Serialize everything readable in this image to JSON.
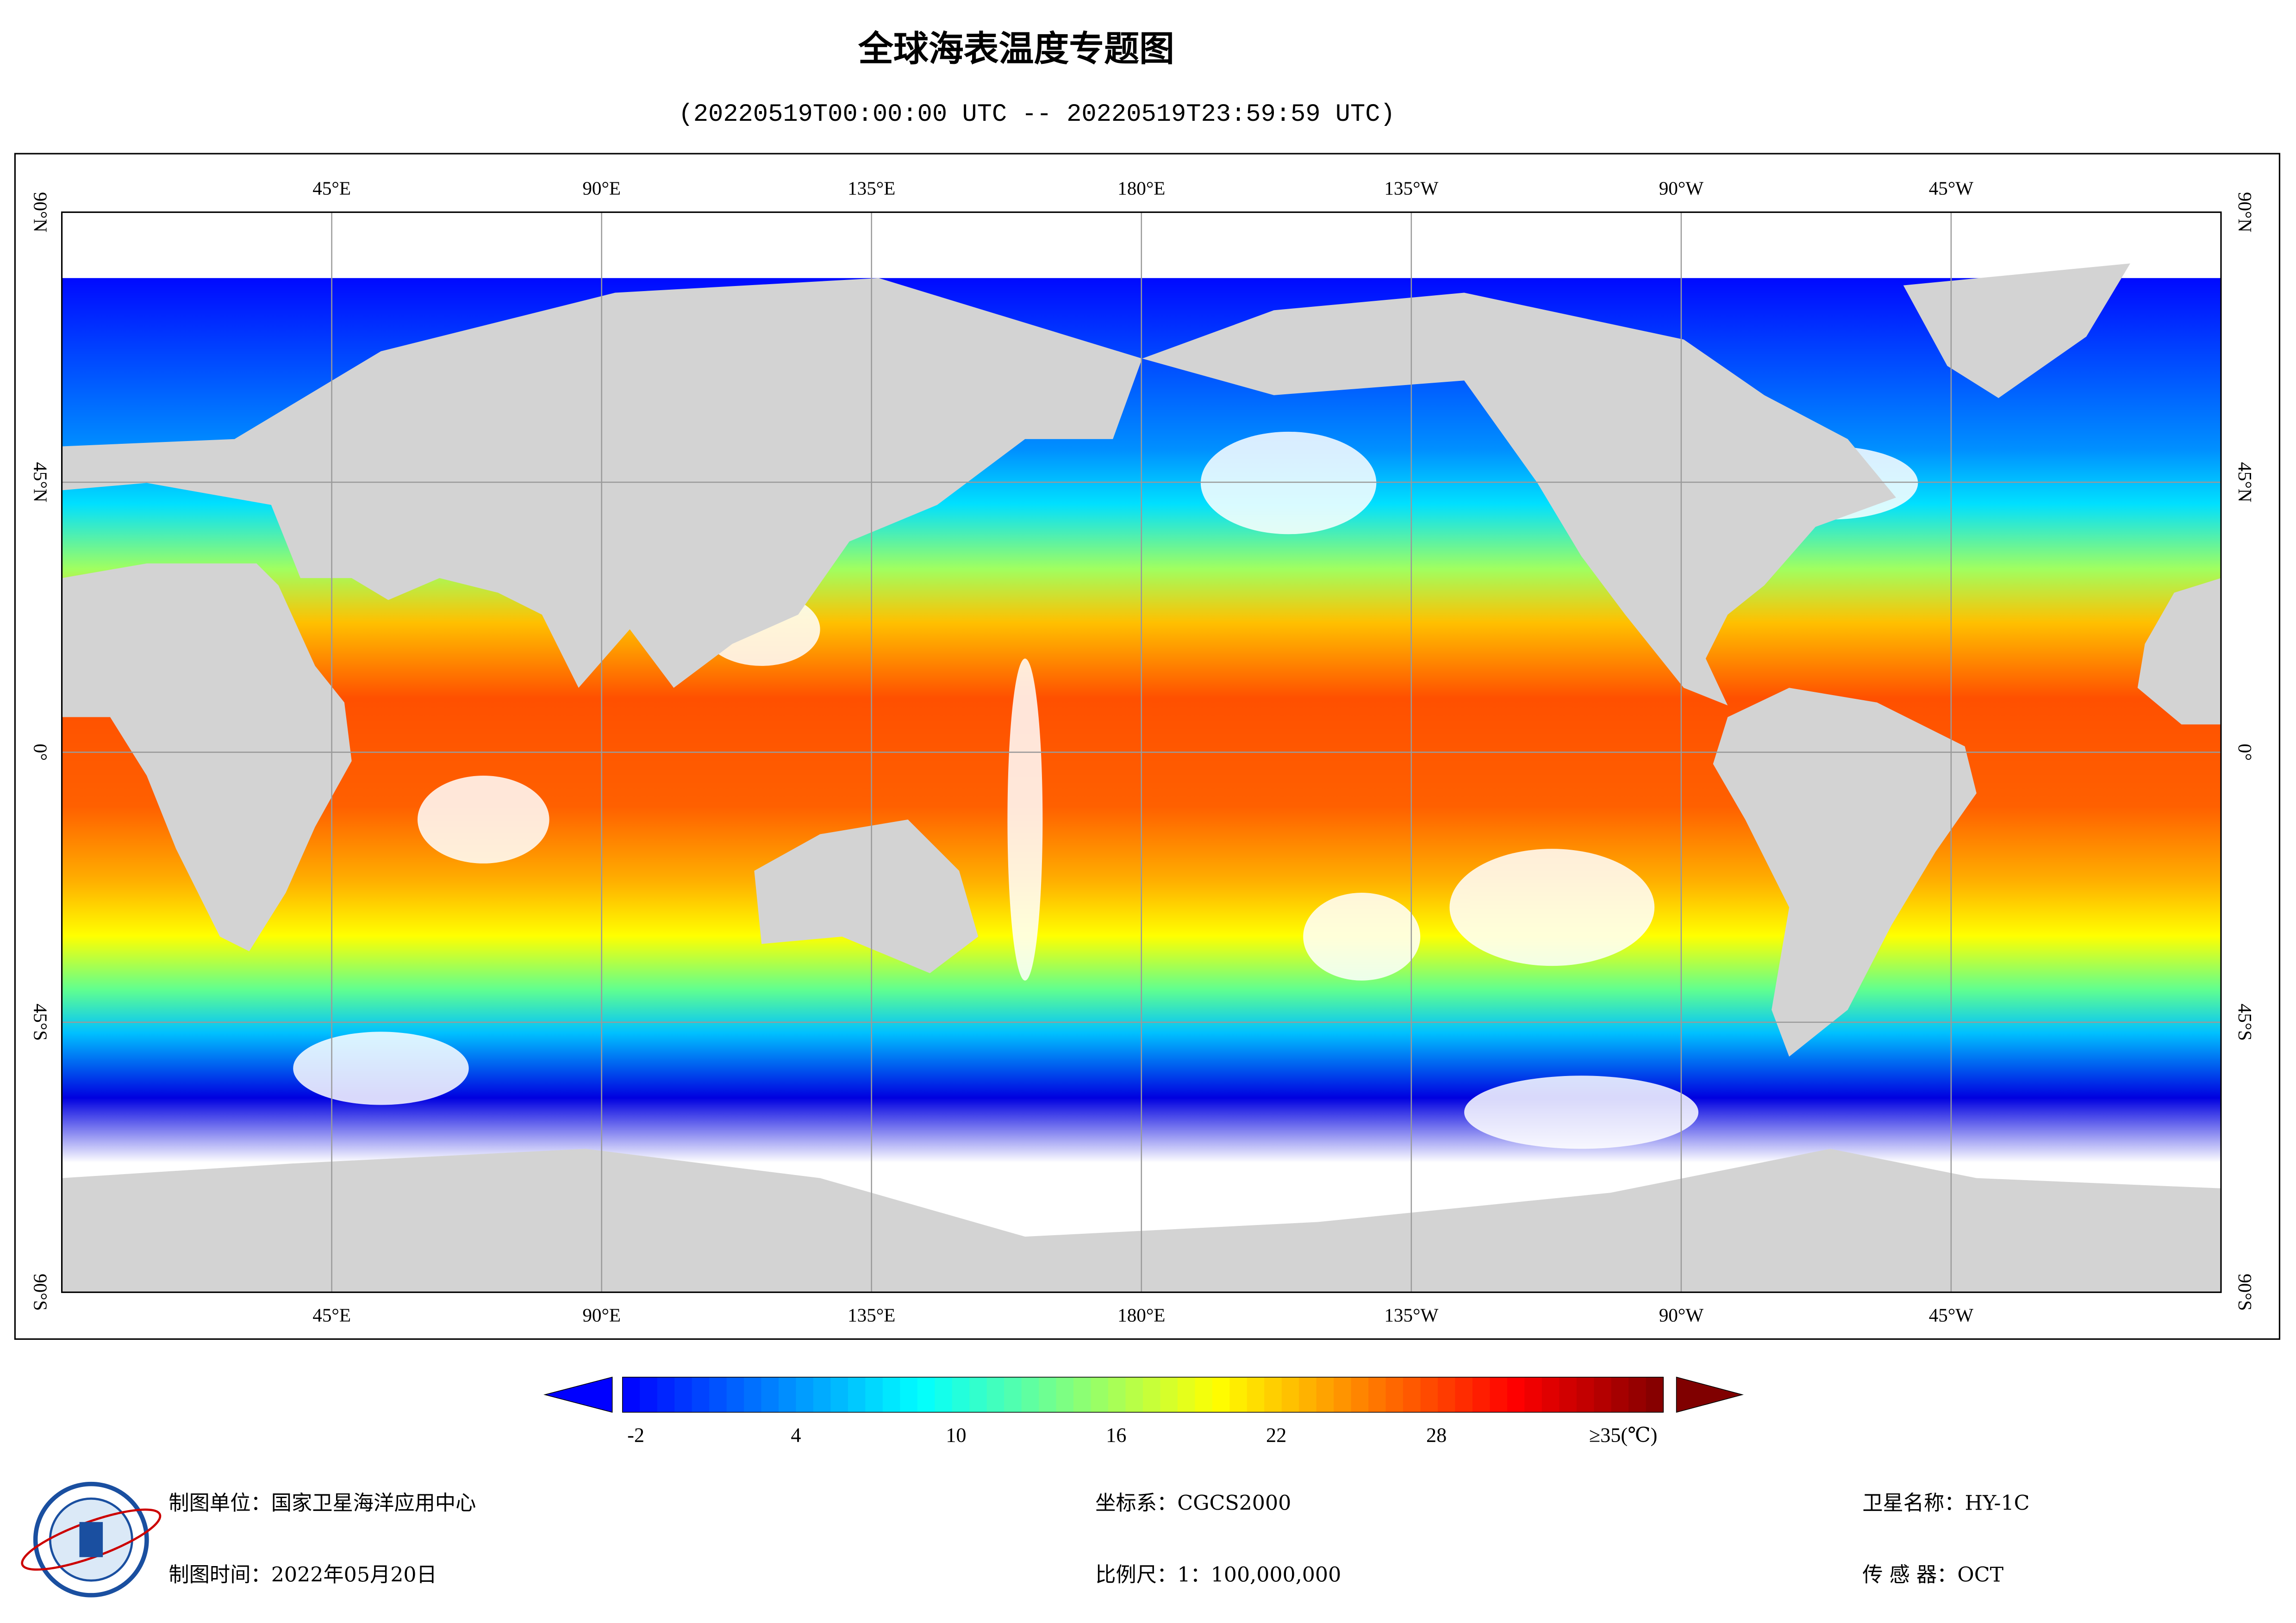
{
  "header": {
    "title": "全球海表温度专题图",
    "subtitle": "(20220519T00:00:00 UTC -- 20220519T23:59:59 UTC)"
  },
  "map": {
    "lonlim": [
      0,
      360
    ],
    "latlim": [
      -90,
      90
    ],
    "lonticks": [
      {
        "value": 45,
        "label": "45°E"
      },
      {
        "value": 90,
        "label": "90°E"
      },
      {
        "value": 135,
        "label": "135°E"
      },
      {
        "value": 180,
        "label": "180°E"
      },
      {
        "value": 225,
        "label": "135°W"
      },
      {
        "value": 270,
        "label": "90°W"
      },
      {
        "value": 315,
        "label": "45°W"
      }
    ],
    "latticks": [
      {
        "value": 90,
        "label": "90°N"
      },
      {
        "value": 45,
        "label": "45°N"
      },
      {
        "value": 0,
        "label": "0°"
      },
      {
        "value": -45,
        "label": "45°S"
      },
      {
        "value": -90,
        "label": "90°S"
      }
    ],
    "grid": true
  },
  "colorbar": {
    "lim": [
      -2.5,
      36.5
    ],
    "colors": [
      "#0000ff",
      "#0080ff",
      "#00ffff",
      "#80ff80",
      "#ffff00",
      "#ff8000",
      "#ff0000",
      "#800000"
    ],
    "ticks": [
      -2,
      4,
      10,
      16,
      22,
      28,
      {
        "value": 35,
        "label": "≥35(℃)"
      }
    ]
  },
  "footer": {
    "unit": "制图单位：国家卫星海洋应用中心",
    "date": "制图时间：2022年05月20日",
    "crs": "坐标系：CGCS2000",
    "scale": "比例尺：1：100,000,000",
    "satellite": "卫星名称：HY-1C",
    "sensor": "传 感 器：OCT"
  }
}
